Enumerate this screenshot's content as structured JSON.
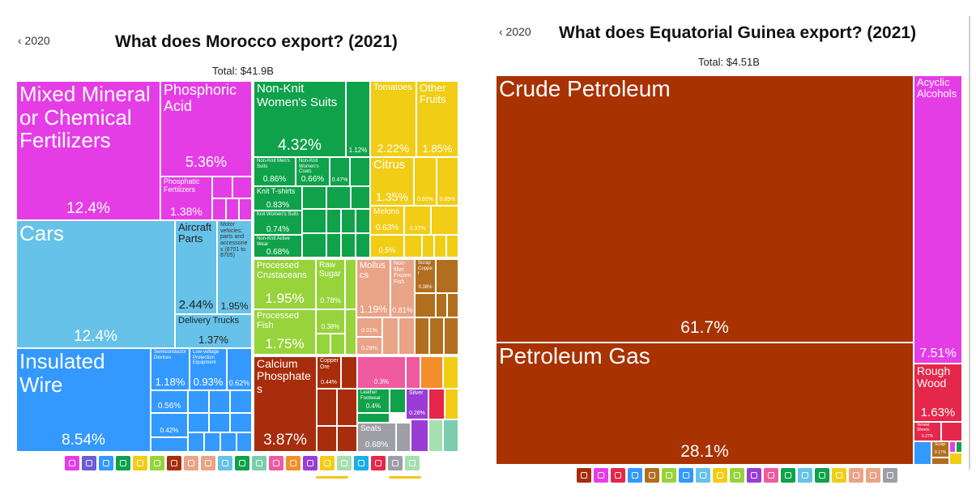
{
  "chart_data": [
    {
      "type": "treemap",
      "back_label": "‹ 2020",
      "title": "What does Morocco export? (2021)",
      "total": "Total: $41.9B",
      "tiles": [
        {
          "label": "Mixed Mineral or Chemical Fertilizers",
          "value": "12.4%",
          "color": "#e53de6"
        },
        {
          "label": "Phosphoric Acid",
          "value": "5.36%",
          "color": "#e53de6"
        },
        {
          "label": "Phosphatic Fertilizers",
          "value": "1.38%",
          "color": "#e53de6"
        },
        {
          "label": "Non-Knit Women's Suits",
          "value": "4.32%",
          "color": "#0fa24a"
        },
        {
          "label": "",
          "value": "1.12%",
          "color": "#0fa24a"
        },
        {
          "label": "Non-Knit Men's Suits",
          "value": "0.86%",
          "color": "#0fa24a"
        },
        {
          "label": "Non-Knit Women's Coats",
          "value": "0.66%",
          "color": "#0fa24a"
        },
        {
          "label": "",
          "value": "0.47%",
          "color": "#0fa24a"
        },
        {
          "label": "Knit T-shirts",
          "value": "0.83%",
          "color": "#0fa24a"
        },
        {
          "label": "Knit Women's Suits",
          "value": "0.74%",
          "color": "#0fa24a"
        },
        {
          "label": "Non-Knit Active Wear",
          "value": "0.68%",
          "color": "#0fa24a"
        },
        {
          "label": "Tomatoes",
          "value": "2.22%",
          "color": "#f2cd16"
        },
        {
          "label": "Other Fruits",
          "value": "1.85%",
          "color": "#f2cd16"
        },
        {
          "label": "Citrus",
          "value": "1.35%",
          "color": "#f2cd16"
        },
        {
          "label": "",
          "value": "0.65%",
          "color": "#f2cd16"
        },
        {
          "label": "",
          "value": "0.65%",
          "color": "#f2cd16"
        },
        {
          "label": "Melons",
          "value": "0.63%",
          "color": "#f2cd16"
        },
        {
          "label": "",
          "value": "0.37%",
          "color": "#f2cd16"
        },
        {
          "label": "",
          "value": "0.5%",
          "color": "#f2cd16"
        },
        {
          "label": "Cars",
          "value": "12.4%",
          "color": "#66c2e8"
        },
        {
          "label": "Aircraft Parts",
          "value": "2.44%",
          "color": "#66c2e8"
        },
        {
          "label": "Motor vehicles; parts and accessories (8701 to 8705)",
          "value": "1.95%",
          "color": "#66c2e8"
        },
        {
          "label": "Delivery Trucks",
          "value": "1.37%",
          "color": "#66c2e8"
        },
        {
          "label": "Processed Crustaceans",
          "value": "1.95%",
          "color": "#97d43b"
        },
        {
          "label": "Raw Sugar",
          "value": "0.78%",
          "color": "#97d43b"
        },
        {
          "label": "Processed Fish",
          "value": "1.75%",
          "color": "#97d43b"
        },
        {
          "label": "",
          "value": "0.38%",
          "color": "#97d43b"
        },
        {
          "label": "Molluscs",
          "value": "1.19%",
          "color": "#e9a386"
        },
        {
          "label": "Non-fillet Frozen Fish",
          "value": "0.81%",
          "color": "#e9a386"
        },
        {
          "label": "",
          "value": "0.31%",
          "color": "#e9a386"
        },
        {
          "label": "",
          "value": "0.29%",
          "color": "#e9a386"
        },
        {
          "label": "Scrap Copper",
          "value": "0.38%",
          "color": "#b26e1f"
        },
        {
          "label": "Insulated Wire",
          "value": "8.54%",
          "color": "#3399ff"
        },
        {
          "label": "Semiconductor Devices",
          "value": "1.18%",
          "color": "#3399ff"
        },
        {
          "label": "Low-voltage Protection Equipment",
          "value": "0.93%",
          "color": "#3399ff"
        },
        {
          "label": "",
          "value": "0.62%",
          "color": "#3399ff"
        },
        {
          "label": "",
          "value": "0.56%",
          "color": "#3399ff"
        },
        {
          "label": "",
          "value": "0.42%",
          "color": "#3399ff"
        },
        {
          "label": "Calcium Phosphates",
          "value": "3.87%",
          "color": "#a82d0d"
        },
        {
          "label": "Copper Ore",
          "value": "0.44%",
          "color": "#a82d0d"
        },
        {
          "label": "",
          "value": "0.3%",
          "color": "#ef5aa0"
        },
        {
          "label": "Leather Footwear",
          "value": "0.4%",
          "color": "#0fa24a"
        },
        {
          "label": "Silver",
          "value": "0.28%",
          "color": "#9a3dd6"
        },
        {
          "label": "Seats",
          "value": "0.68%",
          "color": "#9e9ea6"
        }
      ],
      "legend_colors": [
        "#e53de6",
        "#6a5cd6",
        "#3399ff",
        "#0fa24a",
        "#f2cd16",
        "#97d43b",
        "#a82d0d",
        "#e9a386",
        "#e9a386",
        "#66c2e8",
        "#0fa24a",
        "#7ccdb0",
        "#ef5aa0",
        "#f28e2b",
        "#9a3dd6",
        "#f2cd16",
        "#a6dfb0",
        "#1ab0e6",
        "#e4274a",
        "#9e9ea6",
        "#a6dfb0"
      ]
    },
    {
      "type": "treemap",
      "back_label": "‹ 2020",
      "title": "What does Equatorial Guinea export? (2021)",
      "total": "Total: $4.51B",
      "tiles": [
        {
          "label": "Crude Petroleum",
          "value": "61.7%",
          "color": "#a83200"
        },
        {
          "label": "Petroleum Gas",
          "value": "28.1%",
          "color": "#a83200"
        },
        {
          "label": "Acyclic Alcohols",
          "value": "7.51%",
          "color": "#e53de6"
        },
        {
          "label": "Rough Wood",
          "value": "1.63%",
          "color": "#e4274a"
        },
        {
          "label": "Veneer Sheets",
          "value": "0.27%",
          "color": "#e4274a"
        },
        {
          "label": "Scrap",
          "value": "0.17%",
          "color": "#b26e1f"
        }
      ],
      "legend_colors": [
        "#a82d0d",
        "#e53de6",
        "#e4274a",
        "#3399ff",
        "#b26e1f",
        "#97d43b",
        "#3399ff",
        "#66c2e8",
        "#f2cd16",
        "#97d43b",
        "#9a3dd6",
        "#ef5aa0",
        "#0fa24a",
        "#66c2e8",
        "#0fa24a",
        "#f2cd16",
        "#e9a386",
        "#e9a386",
        "#9e9ea6"
      ]
    }
  ]
}
